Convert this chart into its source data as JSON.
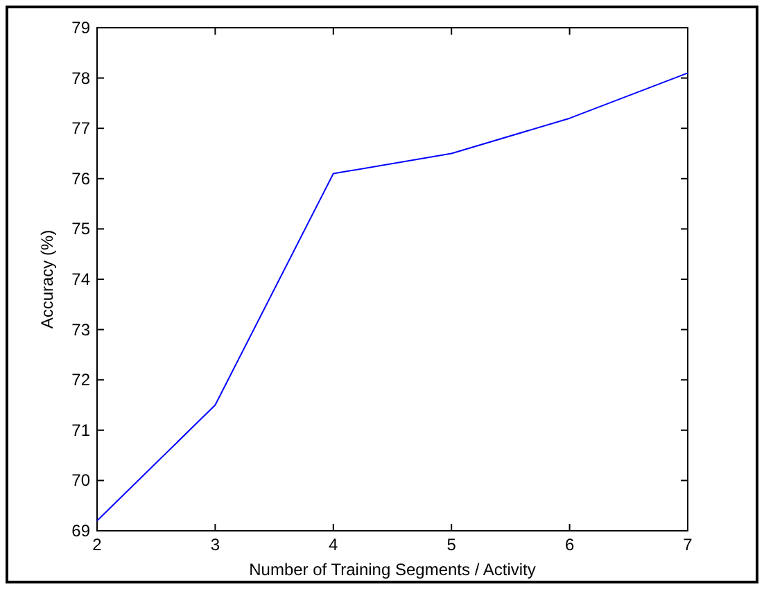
{
  "chart_data": {
    "type": "line",
    "xlabel": "Number of Training Segments / Activity",
    "ylabel": "Accuracy (%)",
    "x": [
      2,
      3,
      4,
      5,
      6,
      7
    ],
    "series": [
      {
        "color": "#0000ff",
        "values": [
          69.2,
          71.5,
          76.1,
          76.5,
          77.2,
          78.1
        ]
      }
    ],
    "xlim": [
      2,
      7
    ],
    "xticks": [
      2,
      3,
      4,
      5,
      6,
      7
    ],
    "ylim": [
      69,
      79
    ],
    "yticks": [
      69,
      70,
      71,
      72,
      73,
      74,
      75,
      76,
      77,
      78,
      79
    ],
    "grid": false,
    "marker": "none",
    "line_style": "solid"
  }
}
